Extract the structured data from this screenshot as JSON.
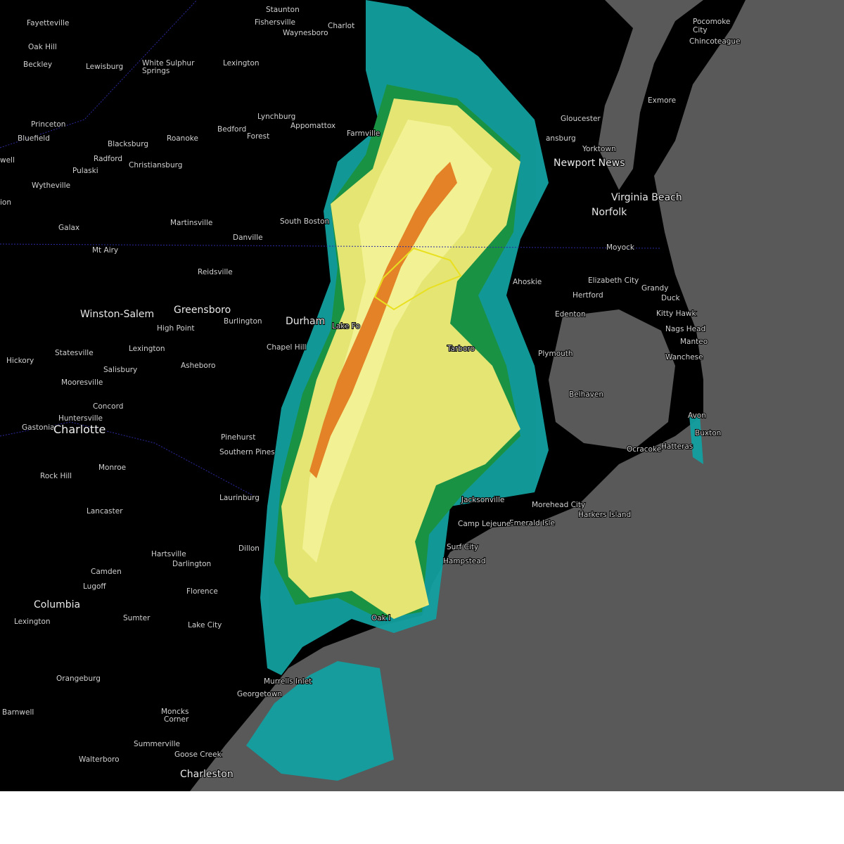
{
  "labels": [
    "Fayetteville",
    "Oak Hill",
    "Beckley",
    "Lewisburg",
    "White Sulphur",
    "Springs",
    "Lexington",
    "Staunton",
    "Fishersville",
    "Waynesboro",
    "Charlot",
    "Princeton",
    "Bluefield",
    "well",
    "Blacksburg",
    "Radford",
    "Christiansburg",
    "Pulaski",
    "Roanoke",
    "Bedford",
    "Forest",
    "Lynchburg",
    "Appomattox",
    "Farmville",
    "Wytheville",
    "ion",
    "Galax",
    "Martinsville",
    "Danville",
    "South Boston",
    "Mt Airy",
    "Reidsville",
    "Winston-Salem",
    "Greensboro",
    "High Point",
    "Burlington",
    "Durham",
    "Chapel Hill",
    "Lake Fo",
    "Lexington",
    "Statesville",
    "Asheboro",
    "Salisbury",
    "Hickory",
    "Mooresville",
    "Concord",
    "Huntersville",
    "Gastonia",
    "Charlotte",
    "Pinehurst",
    "Southern Pines",
    "Monroe",
    "Rock Hill",
    "Laurinburg",
    "Lancaster",
    "Dillon",
    "Hartsville",
    "Darlington",
    "Camden",
    "Lugoff",
    "Florence",
    "Columbia",
    "Lexington",
    "Sumter",
    "Lake City",
    "Orangeburg",
    "Georgetown",
    "Murrells Inlet",
    "Moncks",
    "Corner",
    "Barnwell",
    "Summerville",
    "Goose Creek",
    "Walterboro",
    "Charleston",
    "Pocomoke",
    "City",
    "Chincoteague",
    "Exmore",
    "Gloucester",
    "ansburg",
    "Yorktown",
    "Newport News",
    "Virginia Beach",
    "Norfolk",
    "Moyock",
    "Ahoskie",
    "Elizabeth City",
    "Hertford",
    "Grandy",
    "Duck",
    "Kitty Hawk",
    "Edenton",
    "Nags Head",
    "Manteo",
    "Wanchese",
    "Plymouth",
    "Tarboro",
    "Belhaven",
    "Avon",
    "Buxton",
    "Ocracoke",
    "Hatteras",
    "Jacksonville",
    "Morehead City",
    "Harkers Island",
    "Emerald Isle",
    "Camp Lejeune",
    "Surf City",
    "Hampstead",
    "Oak I"
  ]
}
